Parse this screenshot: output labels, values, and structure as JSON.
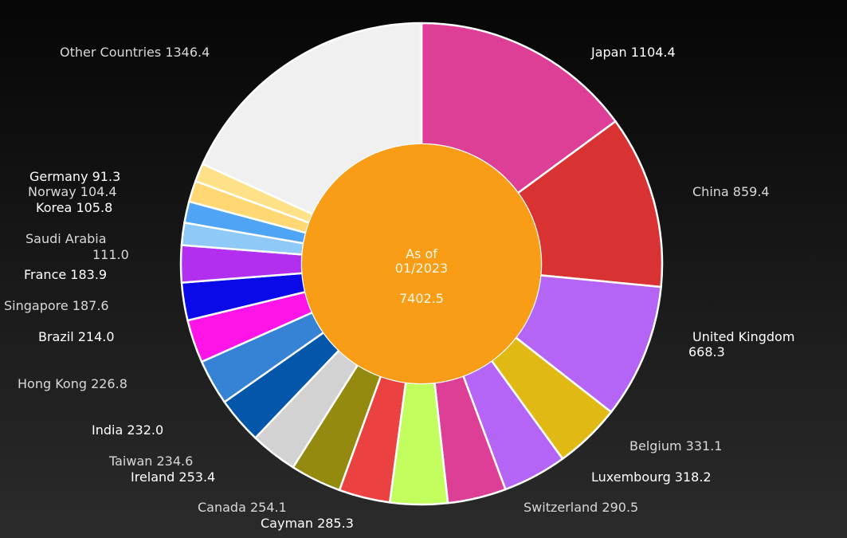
{
  "chart_data": {
    "type": "pie",
    "subtype": "donut",
    "center": {
      "line1": "As of",
      "line2": "01/2023",
      "total": "7402.5"
    },
    "colors": {
      "background": "#141414",
      "center_fill": "#f99d16",
      "slice_border": "#ffffff"
    },
    "slices": [
      {
        "label": "Japan",
        "value": "1104.4",
        "color": "#dd3f96"
      },
      {
        "label": "China",
        "value": "859.4",
        "color": "#d83232"
      },
      {
        "label": "United Kingdom",
        "value": "668.3",
        "color": "#b465f5"
      },
      {
        "label": "Belgium",
        "value": "331.1",
        "color": "#e0b915"
      },
      {
        "label": "Luxembourg",
        "value": "318.2",
        "color": "#b465f5"
      },
      {
        "label": "Switzerland",
        "value": "290.5",
        "color": "#dd3f96"
      },
      {
        "label": "Cayman",
        "value": "285.3",
        "color": "#c2ff5e"
      },
      {
        "label": "Canada",
        "value": "254.1",
        "color": "#eb4141"
      },
      {
        "label": "Ireland",
        "value": "253.4",
        "color": "#958a10"
      },
      {
        "label": "Taiwan",
        "value": "234.6",
        "color": "#d2d2d2"
      },
      {
        "label": "India",
        "value": "232.0",
        "color": "#0356aa"
      },
      {
        "label": "Hong Kong",
        "value": "226.8",
        "color": "#3683d6"
      },
      {
        "label": "Brazil",
        "value": "214.0",
        "color": "#ff14e8"
      },
      {
        "label": "Singapore",
        "value": "187.6",
        "color": "#0a09e8"
      },
      {
        "label": "France",
        "value": "183.9",
        "color": "#b22ff0"
      },
      {
        "label": "Saudi Arabia",
        "value": "111.0",
        "color": "#8ec9f7"
      },
      {
        "label": "Korea",
        "value": "105.8",
        "color": "#4fa5f5"
      },
      {
        "label": "Norway",
        "value": "104.4",
        "color": "#ffd873"
      },
      {
        "label": "Germany",
        "value": "91.3",
        "color": "#ffe287"
      },
      {
        "label": "Other Countries",
        "value": "1346.4",
        "color": "#f0f0f0"
      }
    ]
  }
}
